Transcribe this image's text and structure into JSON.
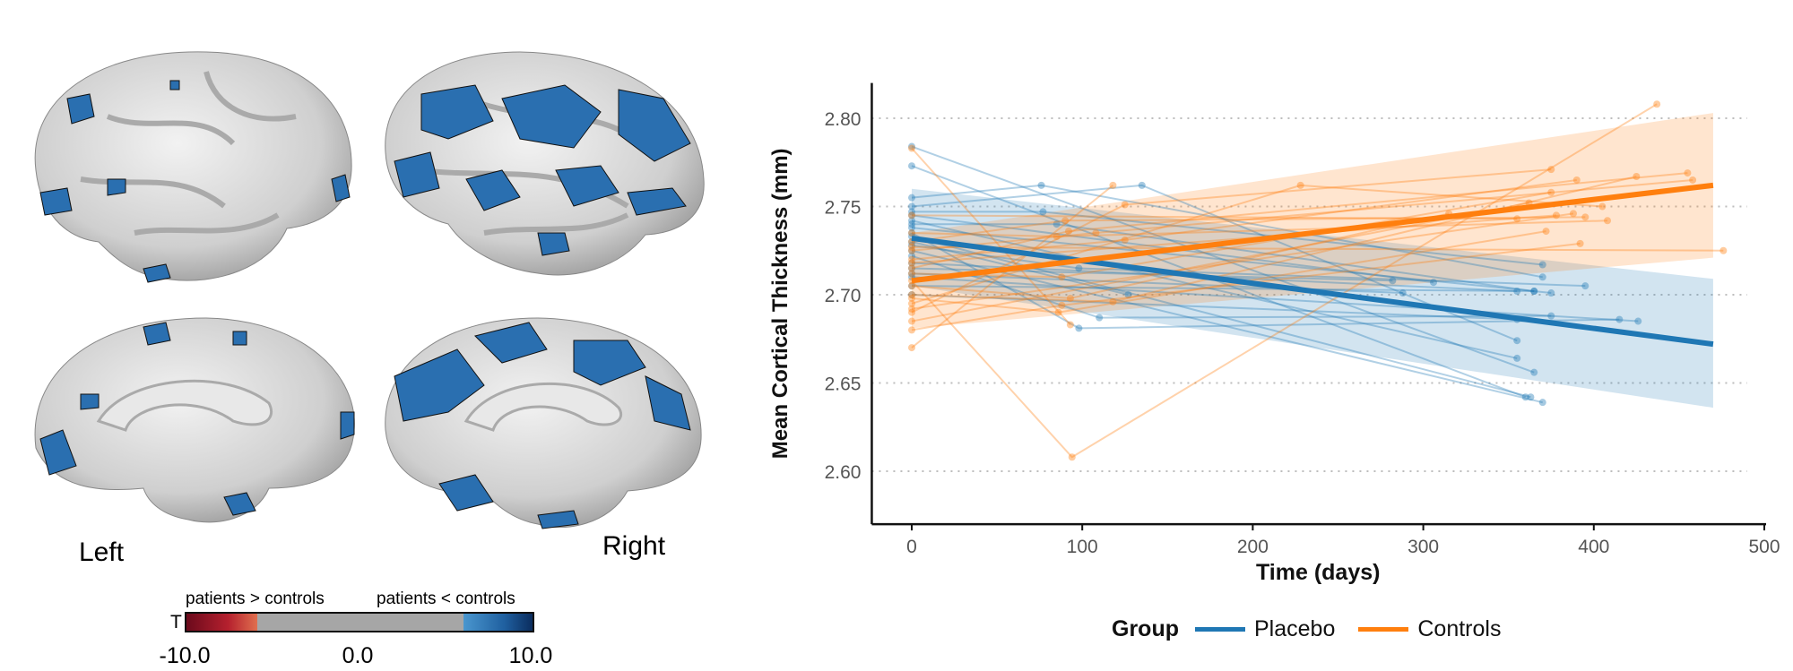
{
  "brain_panel": {
    "left_label": "Left",
    "right_label": "Right",
    "colorbar": {
      "label_left": "patients > controls",
      "label_right": "patients < controls",
      "axis_label": "T",
      "ticks": [
        "-10.0",
        "0.0",
        "10.0"
      ],
      "range": [
        -10,
        10
      ],
      "threshold": 6,
      "colors": {
        "neg_dark": "#6b0a1c",
        "neg_light": "#e0704f",
        "neutral": "#a6a6a6",
        "pos_light": "#4a97cf",
        "pos_dark": "#0b2d5e"
      }
    }
  },
  "chart_data": {
    "type": "line",
    "title": "",
    "xlabel": "Time (days)",
    "ylabel": "Mean Cortical Thickness (mm)",
    "xlim": [
      -25,
      500
    ],
    "ylim": [
      2.57,
      2.82
    ],
    "xticks": [
      0,
      100,
      200,
      300,
      400,
      500
    ],
    "xtick_labels": [
      "0",
      "100",
      "200",
      "300",
      "400",
      "500"
    ],
    "yticks": [
      2.6,
      2.65,
      2.7,
      2.75,
      2.8
    ],
    "ytick_labels": [
      "2.60",
      "2.65",
      "2.70",
      "2.75",
      "2.80"
    ],
    "grid": "horizontal dotted",
    "legend": {
      "title": "Group",
      "position": "bottom",
      "entries": [
        "Placebo",
        "Controls"
      ]
    },
    "series": [
      {
        "name": "Placebo",
        "color": "#1f77b4",
        "fit": {
          "x": [
            0,
            470
          ],
          "y": [
            2.732,
            2.672
          ]
        },
        "ribbon": {
          "x": [
            0,
            470
          ],
          "lower": [
            2.705,
            2.636
          ],
          "upper": [
            2.76,
            2.709
          ]
        },
        "subjects": [
          [
            [
              0,
              2.784
            ],
            [
              365,
              2.656
            ]
          ],
          [
            [
              0,
              2.773
            ],
            [
              360,
              2.642
            ]
          ],
          [
            [
              0,
              2.755
            ],
            [
              76,
              2.762
            ],
            [
              370,
              2.71
            ]
          ],
          [
            [
              0,
              2.75
            ],
            [
              135,
              2.762
            ],
            [
              355,
              2.674
            ]
          ],
          [
            [
              0,
              2.747
            ],
            [
              77,
              2.747
            ],
            [
              370,
              2.717
            ]
          ],
          [
            [
              0,
              2.74
            ],
            [
              85,
              2.74
            ],
            [
              365,
              2.702
            ]
          ],
          [
            [
              0,
              2.735
            ],
            [
              98,
              2.681
            ],
            [
              415,
              2.686
            ]
          ],
          [
            [
              0,
              2.728
            ],
            [
              98,
              2.715
            ],
            [
              395,
              2.705
            ]
          ],
          [
            [
              0,
              2.722
            ],
            [
              110,
              2.687
            ],
            [
              375,
              2.688
            ]
          ],
          [
            [
              0,
              2.715
            ],
            [
              282,
              2.708
            ]
          ],
          [
            [
              0,
              2.712
            ],
            [
              288,
              2.701
            ]
          ],
          [
            [
              0,
              2.745
            ],
            [
              306,
              2.707
            ]
          ],
          [
            [
              0,
              2.742
            ],
            [
              355,
              2.664
            ]
          ],
          [
            [
              0,
              2.733
            ],
            [
              363,
              2.642
            ]
          ],
          [
            [
              0,
              2.725
            ],
            [
              370,
              2.639
            ]
          ],
          [
            [
              0,
              2.718
            ],
            [
              355,
              2.702
            ]
          ],
          [
            [
              0,
              2.71
            ],
            [
              426,
              2.685
            ]
          ],
          [
            [
              0,
              2.705
            ],
            [
              365,
              2.702
            ]
          ],
          [
            [
              0,
              2.738
            ],
            [
              375,
              2.701
            ]
          ],
          [
            [
              0,
              2.7
            ],
            [
              355,
              2.686
            ]
          ],
          [
            [
              0,
              2.73
            ],
            [
              127,
              2.7
            ]
          ]
        ]
      },
      {
        "name": "Controls",
        "color": "#ff7f0e",
        "fit": {
          "x": [
            0,
            470
          ],
          "y": [
            2.708,
            2.762
          ]
        },
        "ribbon": {
          "x": [
            0,
            470
          ],
          "lower": [
            2.681,
            2.721
          ],
          "upper": [
            2.735,
            2.803
          ]
        },
        "subjects": [
          [
            [
              0,
              2.783
            ],
            [
              93,
              2.683
            ]
          ],
          [
            [
              0,
              2.67
            ],
            [
              118,
              2.762
            ]
          ],
          [
            [
              0,
              2.708
            ],
            [
              94,
              2.608
            ],
            [
              437,
              2.808
            ]
          ],
          [
            [
              0,
              2.695
            ],
            [
              228,
              2.762
            ],
            [
              405,
              2.75
            ]
          ],
          [
            [
              0,
              2.69
            ],
            [
              125,
              2.751
            ],
            [
              375,
              2.771
            ]
          ],
          [
            [
              0,
              2.72
            ],
            [
              125,
              2.731
            ],
            [
              390,
              2.765
            ]
          ],
          [
            [
              0,
              2.7
            ],
            [
              118,
              2.696
            ],
            [
              425,
              2.767
            ]
          ],
          [
            [
              0,
              2.715
            ],
            [
              92,
              2.736
            ],
            [
              455,
              2.769
            ]
          ],
          [
            [
              0,
              2.725
            ],
            [
              108,
              2.735
            ],
            [
              458,
              2.765
            ]
          ],
          [
            [
              0,
              2.712
            ],
            [
              88,
              2.71
            ],
            [
              375,
              2.758
            ]
          ],
          [
            [
              0,
              2.705
            ],
            [
              93,
              2.698
            ],
            [
              315,
              2.746
            ]
          ],
          [
            [
              0,
              2.698
            ],
            [
              86,
              2.69
            ],
            [
              372,
              2.736
            ]
          ],
          [
            [
              0,
              2.73
            ],
            [
              90,
              2.742
            ],
            [
              395,
              2.744
            ]
          ],
          [
            [
              0,
              2.735
            ],
            [
              85,
              2.733
            ],
            [
              408,
              2.742
            ]
          ],
          [
            [
              0,
              2.68
            ],
            [
              88,
              2.694
            ],
            [
              392,
              2.729
            ]
          ],
          [
            [
              0,
              2.745
            ],
            [
              355,
              2.743
            ]
          ],
          [
            [
              0,
              2.718
            ],
            [
              378,
              2.745
            ]
          ],
          [
            [
              0,
              2.727
            ],
            [
              476,
              2.725
            ]
          ],
          [
            [
              0,
              2.692
            ],
            [
              388,
              2.746
            ]
          ],
          [
            [
              0,
              2.685
            ],
            [
              362,
              2.752
            ]
          ]
        ]
      }
    ]
  }
}
